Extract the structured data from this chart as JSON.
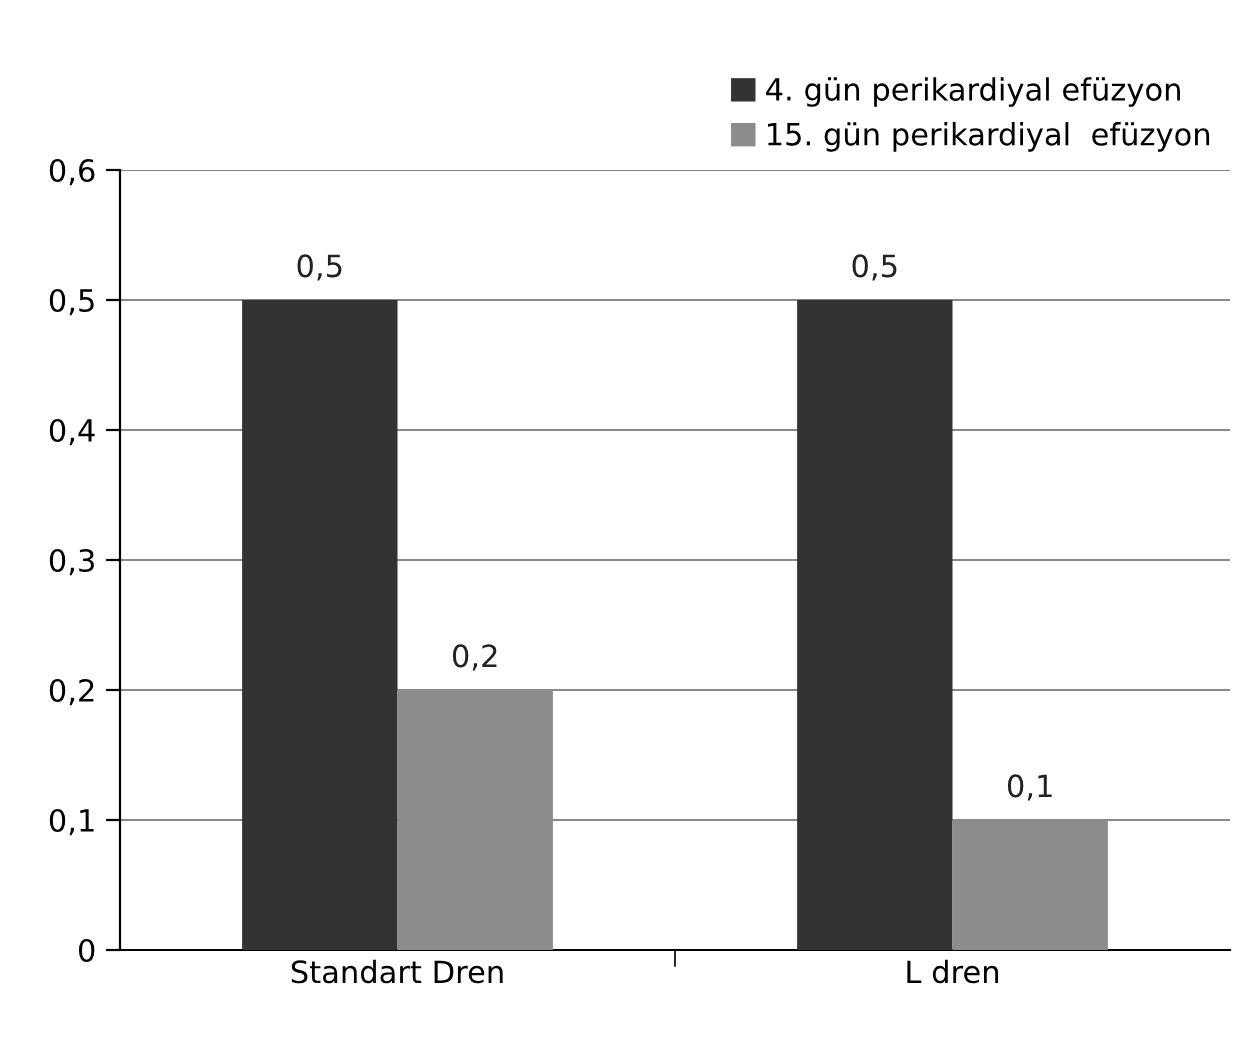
{
  "chart_data": {
    "type": "bar",
    "categories": [
      "Standart Dren",
      "L dren"
    ],
    "series": [
      {
        "name": "4. gün perikardiyal efüzyon",
        "color": "#333333",
        "values": [
          0.5,
          0.5
        ],
        "value_labels": [
          "0,5",
          "0,5"
        ]
      },
      {
        "name": "15. gün perikardiyal  efüzyon",
        "color": "#8c8c8c",
        "values": [
          0.2,
          0.1
        ],
        "value_labels": [
          "0,2",
          "0,1"
        ]
      }
    ],
    "ylim": [
      0,
      0.6
    ],
    "yticks": [
      0,
      {
        "value": 0.1,
        "label": "0,1"
      },
      {
        "value": 0.2,
        "label": "0,2"
      },
      {
        "value": 0.3,
        "label": "0,3"
      },
      {
        "value": 0.4,
        "label": "0,4"
      },
      {
        "value": 0.5,
        "label": "0,5"
      },
      {
        "value": 0.6,
        "label": "0,6"
      }
    ],
    "grid": "y",
    "legend": "top right"
  }
}
